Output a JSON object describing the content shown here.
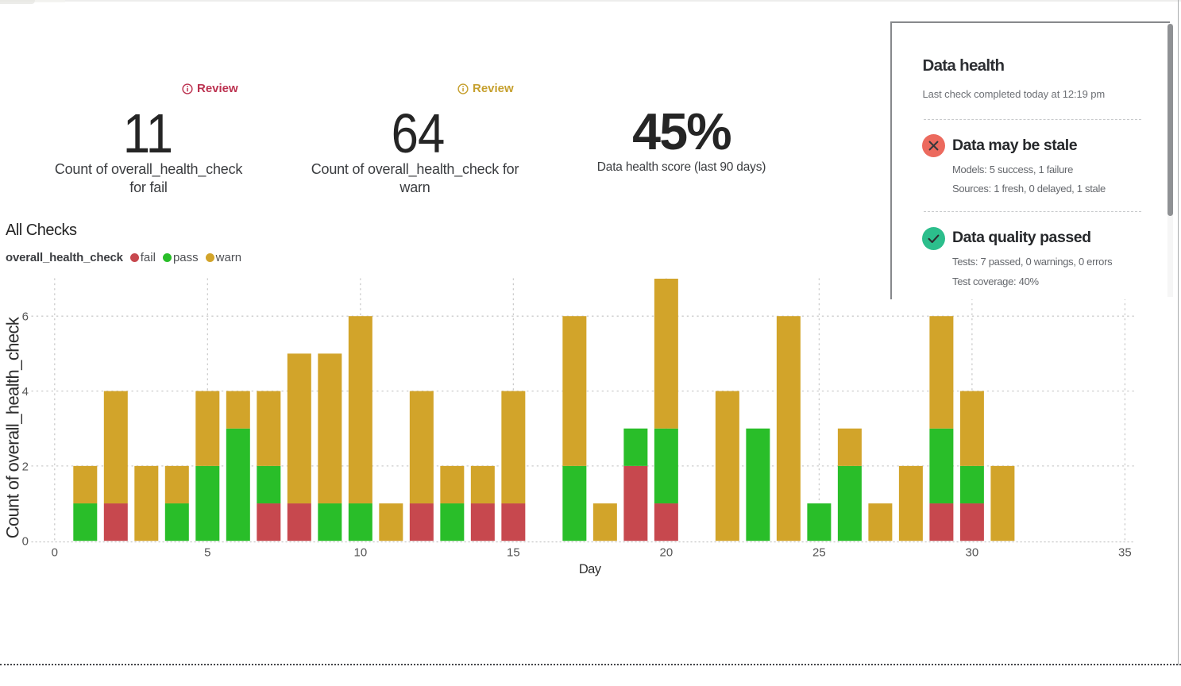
{
  "kpi_cards": [
    {
      "status_label": "Review",
      "status_color": "#BC3250",
      "value": "11",
      "caption_lines": [
        "Count of overall_health_check",
        "for fail"
      ]
    },
    {
      "status_label": "Review",
      "status_color": "#C6A02E",
      "value": "64",
      "caption_lines": [
        "Count of overall_health_check for",
        "warn"
      ]
    },
    {
      "value": "45%",
      "caption": "Data health score (last 90 days)"
    }
  ],
  "section": {
    "title": "All Checks"
  },
  "legend": {
    "series_label": "overall_health_check",
    "items": [
      {
        "label": "fail",
        "color": "#C7484E"
      },
      {
        "label": "pass",
        "color": "#29BE29"
      },
      {
        "label": "warn",
        "color": "#D2A42A"
      }
    ]
  },
  "chart_data": {
    "type": "bar",
    "stacked": true,
    "title": "All Checks",
    "xlabel": "Day",
    "ylabel": "Count of overall_health_check",
    "x": [
      1,
      2,
      3,
      4,
      5,
      6,
      7,
      8,
      9,
      10,
      11,
      12,
      13,
      14,
      15,
      16,
      17,
      18,
      19,
      20,
      21,
      22,
      23,
      24,
      25,
      26,
      27,
      28,
      29,
      30,
      31
    ],
    "series": [
      {
        "name": "fail",
        "color": "#C7484E",
        "values": [
          0,
          1,
          0,
          0,
          0,
          0,
          1,
          1,
          0,
          0,
          0,
          1,
          0,
          1,
          1,
          0,
          0,
          0,
          2,
          1,
          0,
          0,
          0,
          0,
          0,
          0,
          0,
          0,
          1,
          1,
          0
        ]
      },
      {
        "name": "pass",
        "color": "#29BE29",
        "values": [
          1,
          0,
          0,
          1,
          2,
          3,
          1,
          0,
          1,
          1,
          0,
          0,
          1,
          0,
          0,
          0,
          2,
          0,
          1,
          2,
          0,
          0,
          3,
          0,
          1,
          2,
          0,
          0,
          2,
          1,
          0
        ]
      },
      {
        "name": "warn",
        "color": "#D2A42A",
        "values": [
          1,
          3,
          2,
          1,
          2,
          1,
          2,
          4,
          4,
          5,
          1,
          3,
          1,
          1,
          3,
          0,
          4,
          1,
          0,
          4,
          0,
          4,
          0,
          6,
          0,
          1,
          1,
          2,
          3,
          2,
          2
        ]
      }
    ],
    "xlim": [
      0,
      35
    ],
    "ylim": [
      0,
      7
    ],
    "xticks": [
      0,
      5,
      10,
      15,
      20,
      25,
      30,
      35
    ],
    "yticks": [
      0,
      2,
      4,
      6
    ],
    "grid": "dotted",
    "legend_position": "top-left"
  },
  "health_panel": {
    "title": "Data health",
    "subtitle": "Last check completed today at 12:19 pm",
    "sections": [
      {
        "status": "fail",
        "icon": "x-circle-icon",
        "icon_color": "#EC6A5E",
        "heading": "Data may be stale",
        "lines": [
          "Models: 5 success, 1 failure",
          "Sources: 1 fresh, 0 delayed, 1 stale"
        ]
      },
      {
        "status": "pass",
        "icon": "check-circle-icon",
        "icon_color": "#2CBE8C",
        "heading": "Data quality passed",
        "lines": [
          "Tests: 7 passed, 0 warnings, 0 errors",
          "Test coverage: 40%"
        ]
      }
    ]
  }
}
